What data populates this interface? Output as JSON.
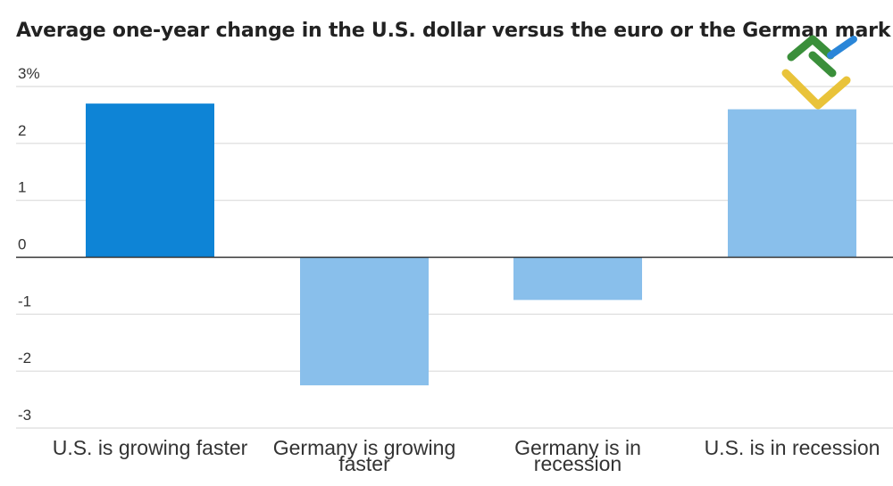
{
  "chart_data": {
    "type": "bar",
    "title": "Average one-year change in the U.S. dollar versus the euro or the German mark",
    "categories": [
      [
        "U.S. is growing faster"
      ],
      [
        "Germany is growing",
        "faster"
      ],
      [
        "Germany is in",
        "recession"
      ],
      [
        "U.S. is in recession"
      ]
    ],
    "values": [
      2.7,
      -2.25,
      -0.75,
      2.6
    ],
    "bar_colors": [
      "#0e84d6",
      "#89bfeb",
      "#89bfeb",
      "#89bfeb"
    ],
    "ylim": [
      -3,
      3
    ],
    "yticks": [
      3,
      2,
      1,
      0,
      -1,
      -2,
      -3
    ],
    "ytick_labels": [
      "3%",
      "2",
      "1",
      "0",
      "-1",
      "-2",
      "-3"
    ],
    "xlabel": "",
    "ylabel": "",
    "grid": true
  },
  "colors": {
    "grid": "#dcdcdc",
    "zero_line": "#333333",
    "text": "#333333",
    "logo_green": "#3a8f3a",
    "logo_blue": "#2a86d8",
    "logo_yellow": "#e9c33a"
  },
  "logo": {
    "icon": "brand-logo-icon"
  }
}
